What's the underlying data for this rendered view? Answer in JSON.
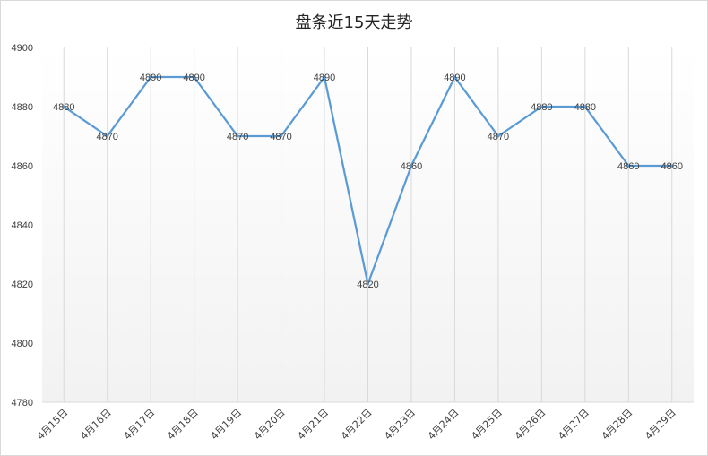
{
  "chart_data": {
    "type": "line",
    "title": "盘条近15天走势",
    "xlabel": "",
    "ylabel": "",
    "categories": [
      "4月15日",
      "4月16日",
      "4月17日",
      "4月18日",
      "4月19日",
      "4月20日",
      "4月21日",
      "4月22日",
      "4月23日",
      "4月24日",
      "4月25日",
      "4月26日",
      "4月27日",
      "4月28日",
      "4月29日"
    ],
    "series": [
      {
        "values": [
          4880,
          4870,
          4890,
          4890,
          4870,
          4870,
          4890,
          4820,
          4860,
          4890,
          4870,
          4880,
          4880,
          4860,
          4860
        ]
      }
    ],
    "ylim": [
      4780,
      4900
    ],
    "yticks": [
      4780,
      4800,
      4820,
      4840,
      4860,
      4880,
      4900
    ],
    "grid": "vertical",
    "legend": "none",
    "data_labels": true,
    "colors": {
      "line": "#5B9BD5",
      "grid": "#d9d9d9",
      "plot_fill_top": "#ffffff",
      "plot_fill_bottom": "#f2f2f2"
    }
  }
}
